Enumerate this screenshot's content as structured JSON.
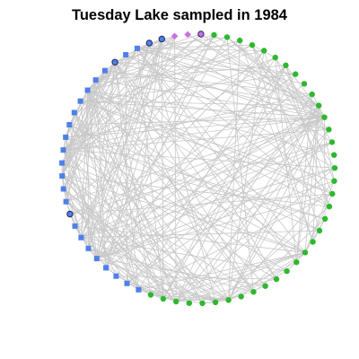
{
  "title": "Tuesday Lake sampled in 1984",
  "colors": {
    "edge": "#c8c8c8",
    "green_circle": "#2db82d",
    "blue_square": "#4f7fea",
    "blue_ring_fill": "#4f7fea",
    "ring_stroke": "#1e2a5a",
    "violet_diamond": "#cc6fe0",
    "violet_ring_fill": "#cc6fe0"
  },
  "node_groups": [
    {
      "shape": "diamond",
      "color": "violet_diamond",
      "count": 2
    },
    {
      "shape": "ring",
      "color": "violet_ring_fill",
      "count": 1
    },
    {
      "shape": "circle",
      "color": "green_circle",
      "count": 36
    },
    {
      "shape": "square",
      "color": "blue_square",
      "count": 8
    },
    {
      "shape": "ring",
      "color": "blue_ring_fill",
      "count": 1
    },
    {
      "shape": "square",
      "color": "blue_square",
      "count": 12
    },
    {
      "shape": "ring",
      "color": "blue_ring_fill",
      "count": 1
    },
    {
      "shape": "square",
      "color": "blue_square",
      "count": 2
    },
    {
      "shape": "ring",
      "color": "blue_ring_fill",
      "count": 2
    }
  ],
  "hub_nodes": [
    13,
    14,
    25,
    32,
    36,
    43,
    45,
    50,
    52,
    57,
    60,
    62
  ]
}
